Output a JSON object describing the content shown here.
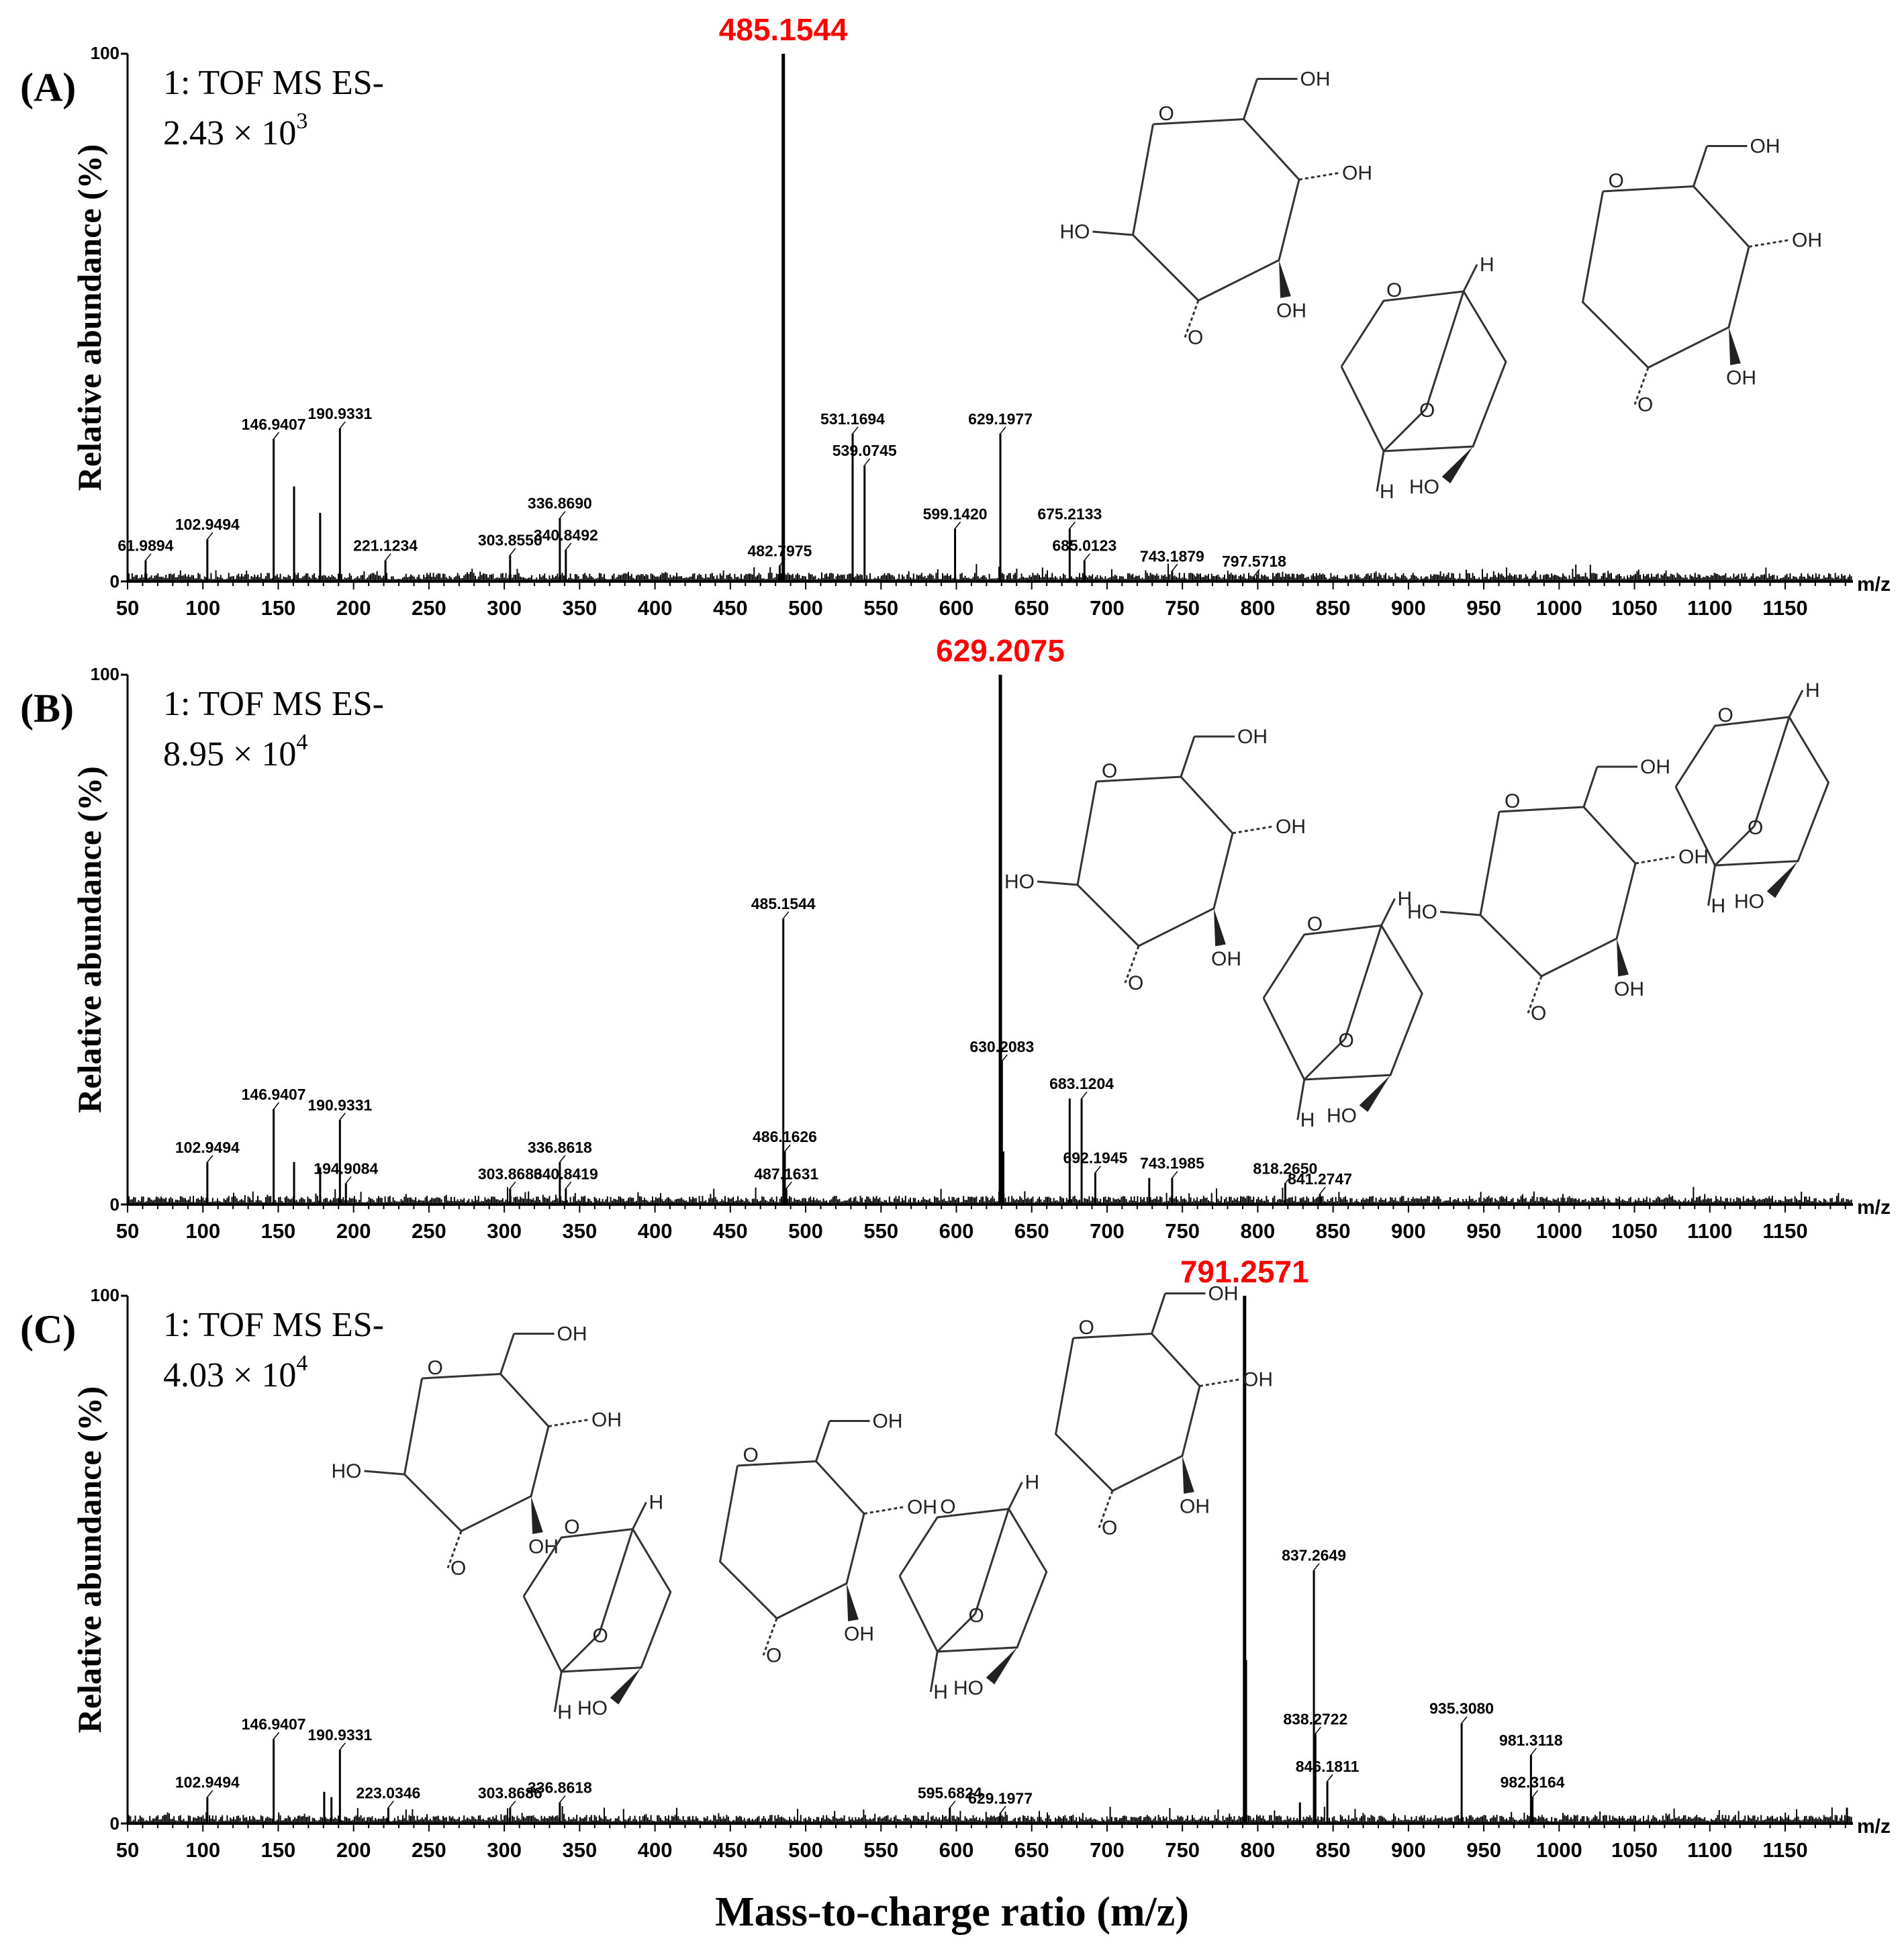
{
  "chart_data": [
    {
      "type": "bar",
      "panel": "(A)",
      "instrument": "1: TOF MS ES-",
      "intensity": "2.43 × 10",
      "intensity_exp": "3",
      "ylabel": "Relative abundance (%)",
      "y_ticks": [
        "0",
        "100"
      ],
      "ylim": [
        0,
        100
      ],
      "xlim": [
        50,
        1195
      ],
      "x_unit": "m/z",
      "base_peak": "485.1544",
      "peaks": [
        {
          "mz": 61.9894,
          "rel": 4,
          "label": "61.9894"
        },
        {
          "mz": 102.9494,
          "rel": 8,
          "label": "102.9494"
        },
        {
          "mz": 146.9407,
          "rel": 27,
          "label": "146.9407"
        },
        {
          "mz": 160.5,
          "rel": 18
        },
        {
          "mz": 177.8,
          "rel": 13
        },
        {
          "mz": 190.9331,
          "rel": 29,
          "label": "190.9331"
        },
        {
          "mz": 221.1234,
          "rel": 4,
          "label": "221.1234"
        },
        {
          "mz": 303.855,
          "rel": 5,
          "label": "303.8550"
        },
        {
          "mz": 336.869,
          "rel": 12,
          "label": "336.8690"
        },
        {
          "mz": 340.8492,
          "rel": 6,
          "label": "340.8492"
        },
        {
          "mz": 482.7975,
          "rel": 3,
          "label": "482.7975"
        },
        {
          "mz": 485.1544,
          "rel": 100
        },
        {
          "mz": 531.1694,
          "rel": 28,
          "label": "531.1694"
        },
        {
          "mz": 539.0745,
          "rel": 22,
          "label": "539.0745"
        },
        {
          "mz": 599.142,
          "rel": 10,
          "label": "599.1420"
        },
        {
          "mz": 629.1977,
          "rel": 28,
          "label": "629.1977"
        },
        {
          "mz": 675.2133,
          "rel": 10,
          "label": "675.2133"
        },
        {
          "mz": 685.0123,
          "rel": 4,
          "label": "685.0123"
        },
        {
          "mz": 743.1879,
          "rel": 2,
          "label": "743.1879"
        },
        {
          "mz": 797.5718,
          "rel": 1,
          "label": "797.5718"
        }
      ]
    },
    {
      "type": "bar",
      "panel": "(B)",
      "instrument": "1: TOF MS ES-",
      "intensity": "8.95 × 10",
      "intensity_exp": "4",
      "ylabel": "Relative abundance (%)",
      "y_ticks": [
        "0",
        "100"
      ],
      "ylim": [
        0,
        100
      ],
      "xlim": [
        50,
        1195
      ],
      "x_unit": "m/z",
      "base_peak": "629.2075",
      "peaks": [
        {
          "mz": 102.9494,
          "rel": 8,
          "label": "102.9494"
        },
        {
          "mz": 146.9407,
          "rel": 18,
          "label": "146.9407"
        },
        {
          "mz": 160.5,
          "rel": 8
        },
        {
          "mz": 177.8,
          "rel": 7
        },
        {
          "mz": 190.9331,
          "rel": 16,
          "label": "190.9331"
        },
        {
          "mz": 194.9084,
          "rel": 4,
          "label": "194.9084"
        },
        {
          "mz": 303.8686,
          "rel": 3,
          "label": "303.8686"
        },
        {
          "mz": 336.8618,
          "rel": 8,
          "label": "336.8618"
        },
        {
          "mz": 340.8419,
          "rel": 3,
          "label": "340.8419"
        },
        {
          "mz": 485.1544,
          "rel": 54,
          "label": "485.1544"
        },
        {
          "mz": 486.1626,
          "rel": 10,
          "label": "486.1626"
        },
        {
          "mz": 487.1631,
          "rel": 3,
          "label": "487.1631"
        },
        {
          "mz": 629.2075,
          "rel": 100
        },
        {
          "mz": 630.2083,
          "rel": 27,
          "label": "630.2083"
        },
        {
          "mz": 631.2,
          "rel": 10
        },
        {
          "mz": 675.2,
          "rel": 20
        },
        {
          "mz": 683.1204,
          "rel": 20,
          "label": "683.1204"
        },
        {
          "mz": 692.1945,
          "rel": 6,
          "label": "692.1945"
        },
        {
          "mz": 728.0,
          "rel": 5
        },
        {
          "mz": 743.1985,
          "rel": 5,
          "label": "743.1985"
        },
        {
          "mz": 818.265,
          "rel": 4,
          "label": "818.2650"
        },
        {
          "mz": 841.2747,
          "rel": 2,
          "label": "841.2747"
        }
      ]
    },
    {
      "type": "bar",
      "panel": "(C)",
      "instrument": "1: TOF MS ES-",
      "intensity": "4.03 × 10",
      "intensity_exp": "4",
      "ylabel": "Relative abundance (%)",
      "y_ticks": [
        "0",
        "100"
      ],
      "ylim": [
        0,
        100
      ],
      "xlim": [
        50,
        1195
      ],
      "x_unit": "m/z",
      "base_peak": "791.2571",
      "xlabel": "Mass-to-charge ratio (m/z)",
      "peaks": [
        {
          "mz": 102.9494,
          "rel": 5,
          "label": "102.9494"
        },
        {
          "mz": 146.9407,
          "rel": 16,
          "label": "146.9407"
        },
        {
          "mz": 180.5,
          "rel": 6
        },
        {
          "mz": 185.3,
          "rel": 5
        },
        {
          "mz": 190.9331,
          "rel": 14,
          "label": "190.9331"
        },
        {
          "mz": 223.0346,
          "rel": 3,
          "label": "223.0346"
        },
        {
          "mz": 303.8686,
          "rel": 3,
          "label": "303.8686"
        },
        {
          "mz": 336.8618,
          "rel": 4,
          "label": "336.8618"
        },
        {
          "mz": 595.6824,
          "rel": 3,
          "label": "595.6824"
        },
        {
          "mz": 629.1977,
          "rel": 2,
          "label": "629.1977"
        },
        {
          "mz": 791.2571,
          "rel": 100
        },
        {
          "mz": 792.26,
          "rel": 31
        },
        {
          "mz": 828.0,
          "rel": 4
        },
        {
          "mz": 837.2649,
          "rel": 48,
          "label": "837.2649"
        },
        {
          "mz": 838.2722,
          "rel": 17,
          "label": "838.2722"
        },
        {
          "mz": 846.1811,
          "rel": 8,
          "label": "846.1811"
        },
        {
          "mz": 935.308,
          "rel": 19,
          "label": "935.3080"
        },
        {
          "mz": 981.3118,
          "rel": 13,
          "label": "981.3118"
        },
        {
          "mz": 982.3164,
          "rel": 5,
          "label": "982.3164"
        },
        {
          "mz": 1191.0,
          "rel": 3
        }
      ]
    }
  ],
  "x_ticks": [
    50,
    100,
    150,
    200,
    250,
    300,
    350,
    400,
    450,
    500,
    550,
    600,
    650,
    700,
    750,
    800,
    850,
    900,
    950,
    1000,
    1050,
    1100,
    1150
  ],
  "x_title": "Mass-to-charge ratio (m/z)",
  "structure_labels": {
    "hydroxyl": "OH",
    "hydroxyl_left": "HO",
    "oxygen": "O",
    "hydrogen": "H"
  },
  "colors": {
    "base_peak": "#ff0000",
    "spectrum": "#000000",
    "structure": "#333333"
  }
}
